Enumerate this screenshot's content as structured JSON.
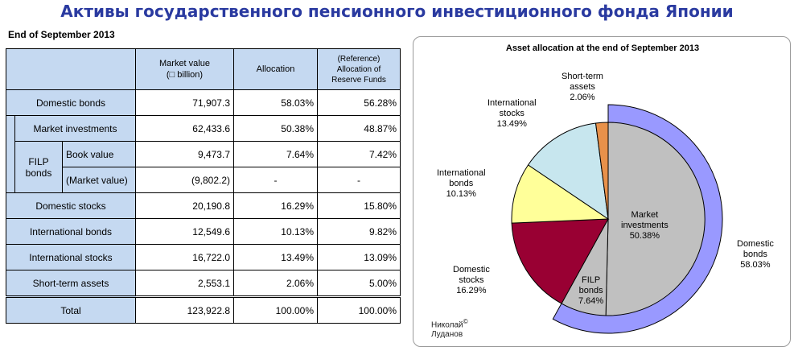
{
  "page": {
    "title": "Активы государственного пенсионного инвестиционного фонда Японии",
    "as_of": "End of September 2013",
    "watermark_name": "Николай",
    "watermark_symbol": "©",
    "watermark_surname": "Луданов"
  },
  "table": {
    "headers": {
      "market_value": "Market value",
      "market_value_unit": "(□ billion)",
      "allocation": "Allocation",
      "reference_line1": "(Reference)",
      "reference_line2": "Allocation of",
      "reference_line3": "Reserve Funds"
    },
    "filp_group_label_line1": "FILP",
    "filp_group_label_line2": "bonds",
    "rows": {
      "domestic_bonds": {
        "label": "Domestic bonds",
        "market_value": "71,907.3",
        "allocation": "58.03%",
        "reference": "56.28%"
      },
      "market_investments": {
        "label": "Market investments",
        "market_value": "62,433.6",
        "allocation": "50.38%",
        "reference": "48.87%"
      },
      "filp_book_value": {
        "label": "Book value",
        "market_value": "9,473.7",
        "allocation": "7.64%",
        "reference": "7.42%"
      },
      "filp_market_value": {
        "label": "(Market value)",
        "market_value": "(9,802.2)",
        "allocation": "-",
        "reference": "-"
      },
      "domestic_stocks": {
        "label": "Domestic stocks",
        "market_value": "20,190.8",
        "allocation": "16.29%",
        "reference": "15.80%"
      },
      "international_bonds": {
        "label": "International bonds",
        "market_value": "12,549.6",
        "allocation": "10.13%",
        "reference": "9.82%"
      },
      "international_stocks": {
        "label": "International stocks",
        "market_value": "16,722.0",
        "allocation": "13.49%",
        "reference": "13.09%"
      },
      "short_term_assets": {
        "label": "Short-term assets",
        "market_value": "2,553.1",
        "allocation": "2.06%",
        "reference": "5.00%"
      },
      "total": {
        "label": "Total",
        "market_value": "123,922.8",
        "allocation": "100.00%",
        "reference": "100.00%"
      }
    }
  },
  "chart_data": {
    "type": "pie",
    "title": "Asset allocation at the end of September 2013",
    "slices": [
      {
        "key": "market_investments",
        "label_lines": [
          "Market",
          "investments"
        ],
        "pct_label": "50.38%",
        "value": 50.38,
        "color": "#c0c0c0"
      },
      {
        "key": "filp_bonds",
        "label_lines": [
          "FILP",
          "bonds"
        ],
        "pct_label": "7.64%",
        "value": 7.64,
        "color": "#c0c0c0"
      },
      {
        "key": "domestic_stocks",
        "label_lines": [
          "Domestic",
          "stocks"
        ],
        "pct_label": "16.29%",
        "value": 16.29,
        "color": "#990033"
      },
      {
        "key": "international_bonds",
        "label_lines": [
          "International",
          "bonds"
        ],
        "pct_label": "10.13%",
        "value": 10.13,
        "color": "#ffff99"
      },
      {
        "key": "international_stocks",
        "label_lines": [
          "International",
          "stocks"
        ],
        "pct_label": "13.49%",
        "value": 13.49,
        "color": "#c7e6ee"
      },
      {
        "key": "short_term_assets",
        "label_lines": [
          "Short-term",
          "assets"
        ],
        "pct_label": "2.06%",
        "value": 2.06,
        "color": "#e8914a"
      }
    ],
    "outer_ring": {
      "key": "domestic_bonds",
      "label_lines": [
        "Domestic",
        "bonds"
      ],
      "pct_label": "58.03%",
      "value": 58.03,
      "color": "#9999ff",
      "covers": [
        "market_investments",
        "filp_bonds"
      ]
    }
  }
}
